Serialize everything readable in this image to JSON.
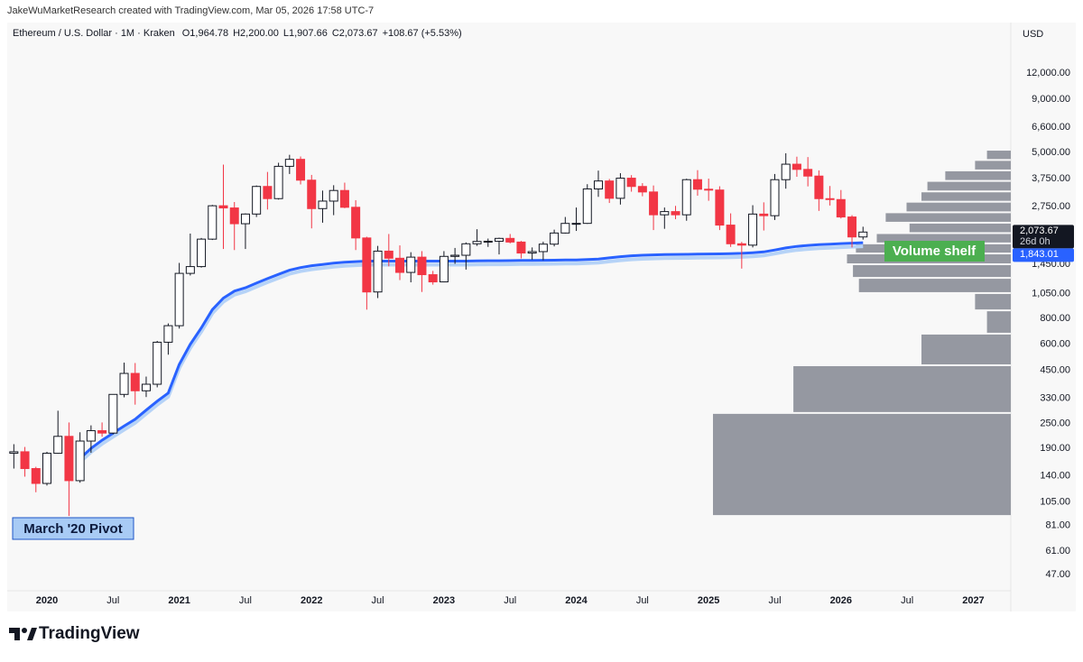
{
  "header": {
    "credit": "JakeWuMarketResearch created with TradingView.com, Mar 05, 2026 17:58 UTC-7"
  },
  "chart_data": {
    "type": "candlestick",
    "legend_title": "Ethereum / U.S. Dollar · 1M · Kraken",
    "ohlc_labels": [
      "O1,964.78",
      "H2,200.00",
      "L1,907.66",
      "C2,073.67",
      "+108.67 (+5.53%)"
    ],
    "currency": "USD",
    "log_scale": true,
    "up_color": "#ffffff",
    "down_color": "#f23645",
    "candles": {
      "open": [
        180,
        183,
        152,
        129,
        180,
        217,
        133,
        206,
        231,
        225,
        345,
        435,
        359,
        386,
        614,
        737,
        1314,
        1416,
        1918,
        2773,
        2707,
        2274,
        2531,
        3433,
        3001,
        4288,
        4632,
        3680,
        2688,
        2920,
        3283,
        2727,
        1943,
        1070,
        1680,
        1553,
        1328,
        1572,
        1295,
        1196,
        1585,
        1605,
        1822,
        1870,
        1874,
        1934,
        1857,
        1645,
        1671,
        1815,
        2052,
        2282,
        2283,
        3340,
        3647,
        3012,
        3762,
        3432,
        3230,
        2510,
        2600,
        2510,
        3700,
        3330,
        3300,
        2240,
        1822,
        1795,
        2530,
        2485,
        3700,
        4390,
        4145,
        3850,
        3000,
        2970,
        2450,
        1964.78
      ],
      "high": [
        199,
        193,
        155,
        183,
        288,
        253,
        227,
        245,
        253,
        345,
        490,
        488,
        420,
        623,
        756,
        1475,
        2040,
        1943,
        2800,
        4370,
        2890,
        2550,
        3470,
        4030,
        4460,
        4870,
        4780,
        3900,
        3280,
        3480,
        3580,
        2950,
        1970,
        1780,
        2030,
        1790,
        1660,
        1680,
        1350,
        1680,
        1740,
        1850,
        2140,
        1930,
        1950,
        2030,
        1880,
        1750,
        1865,
        2130,
        2450,
        2720,
        3520,
        4090,
        3730,
        3975,
        3890,
        3560,
        3470,
        2720,
        2770,
        3740,
        4110,
        3745,
        3440,
        2550,
        1860,
        2790,
        2880,
        3940,
        4955,
        4770,
        4750,
        4100,
        3450,
        3300,
        2500,
        2200
      ],
      "low": [
        152,
        139,
        117,
        126,
        179,
        90,
        130,
        181,
        216,
        222,
        334,
        308,
        335,
        373,
        535,
        714,
        1283,
        1400,
        1900,
        1720,
        1700,
        1720,
        2450,
        2660,
        2970,
        3940,
        3510,
        2160,
        2300,
        2500,
        2700,
        1700,
        880,
        1000,
        1420,
        1220,
        1190,
        1070,
        1160,
        1190,
        1460,
        1370,
        1780,
        1760,
        1620,
        1830,
        1550,
        1530,
        1520,
        1770,
        2040,
        2100,
        2270,
        3060,
        2860,
        2810,
        3240,
        3080,
        2120,
        2150,
        2390,
        2350,
        3100,
        2930,
        2120,
        1760,
        1385,
        1750,
        2110,
        2370,
        3350,
        3820,
        3435,
        2620,
        2780,
        2410,
        1750,
        1907.66
      ],
      "close": [
        183,
        152,
        129,
        180,
        217,
        133,
        206,
        231,
        225,
        345,
        435,
        359,
        386,
        614,
        737,
        1314,
        1416,
        1918,
        2773,
        2707,
        2274,
        2531,
        3433,
        3001,
        4288,
        4632,
        3680,
        2688,
        2920,
        3283,
        2727,
        1943,
        1070,
        1680,
        1553,
        1328,
        1572,
        1295,
        1196,
        1585,
        1605,
        1822,
        1870,
        1874,
        1934,
        1857,
        1645,
        1671,
        1815,
        2052,
        2282,
        2283,
        3340,
        3647,
        3012,
        3762,
        3432,
        3230,
        2510,
        2600,
        2510,
        3700,
        3330,
        3300,
        2240,
        1822,
        1795,
        2530,
        2485,
        3700,
        4390,
        4145,
        3850,
        3000,
        2970,
        2450,
        1965,
        2073.67
      ]
    },
    "moving_average": {
      "color": "#2962ff",
      "values": [
        null,
        null,
        null,
        null,
        null,
        null,
        170,
        190,
        208,
        225,
        243,
        262,
        290,
        320,
        350,
        480,
        600,
        720,
        880,
        1000,
        1080,
        1120,
        1180,
        1240,
        1300,
        1360,
        1400,
        1430,
        1450,
        1470,
        1485,
        1495,
        1505,
        1505,
        1505,
        1505,
        1505,
        1505,
        1505,
        1505,
        1505,
        1505,
        1508,
        1510,
        1510,
        1512,
        1515,
        1515,
        1518,
        1520,
        1522,
        1525,
        1530,
        1540,
        1560,
        1580,
        1595,
        1605,
        1612,
        1618,
        1620,
        1622,
        1625,
        1628,
        1630,
        1632,
        1640,
        1650,
        1665,
        1700,
        1740,
        1770,
        1790,
        1805,
        1815,
        1825,
        1835,
        1843.01
      ]
    },
    "volume_profile": {
      "color": "#9598a1",
      "bins": [
        90,
        281,
        476,
        675,
        873,
        1057,
        1250,
        1453,
        1637,
        1830,
        2050,
        2300,
        2580,
        2900,
        3250,
        3650,
        4100,
        4600,
        5150
      ],
      "values": [
        100,
        73,
        30,
        8,
        12,
        51,
        53,
        55,
        52,
        45,
        34,
        42,
        35,
        30,
        28,
        22,
        12,
        8
      ]
    },
    "ylim": [
      39.4,
      21000
    ],
    "yticks": [
      {
        "value": 47,
        "label": "47.00"
      },
      {
        "value": 61,
        "label": "61.00"
      },
      {
        "value": 81,
        "label": "81.00"
      },
      {
        "value": 105,
        "label": "105.00"
      },
      {
        "value": 140,
        "label": "140.00"
      },
      {
        "value": 190,
        "label": "190.00"
      },
      {
        "value": 250,
        "label": "250.00"
      },
      {
        "value": 330,
        "label": "330.00"
      },
      {
        "value": 450,
        "label": "450.00"
      },
      {
        "value": 600,
        "label": "600.00"
      },
      {
        "value": 800,
        "label": "800.00"
      },
      {
        "value": 1050,
        "label": "1,050.00"
      },
      {
        "value": 1450,
        "label": "1,450.00"
      },
      {
        "value": 2750,
        "label": "2,750.00"
      },
      {
        "value": 3750,
        "label": "3,750.00"
      },
      {
        "value": 5000,
        "label": "5,000.00"
      },
      {
        "value": 6600,
        "label": "6,600.00"
      },
      {
        "value": 9000,
        "label": "9,000.00"
      },
      {
        "value": 12000,
        "label": "12,000.00"
      }
    ],
    "xlim": [
      -0.6,
      90.4
    ],
    "xticks": [
      {
        "value": 3,
        "label": "2020"
      },
      {
        "value": 9,
        "label": "Jul"
      },
      {
        "value": 15,
        "label": "2021"
      },
      {
        "value": 21,
        "label": "Jul"
      },
      {
        "value": 27,
        "label": "2022"
      },
      {
        "value": 33,
        "label": "Jul"
      },
      {
        "value": 39,
        "label": "2023"
      },
      {
        "value": 45,
        "label": "Jul"
      },
      {
        "value": 51,
        "label": "2024"
      },
      {
        "value": 57,
        "label": "Jul"
      },
      {
        "value": 63,
        "label": "2025"
      },
      {
        "value": 69,
        "label": "Jul"
      },
      {
        "value": 75,
        "label": "2026"
      },
      {
        "value": 81,
        "label": "Jul"
      },
      {
        "value": 87,
        "label": "2027"
      }
    ],
    "price_labels": {
      "last": {
        "value": 2073.67,
        "label": "2,073.67"
      },
      "countdown": "26d 0h",
      "ma": {
        "value": 1843.01,
        "label": "1,843.01"
      }
    },
    "annotations": [
      {
        "text": "March '20 Pivot"
      },
      {
        "text": "Volume shelf"
      }
    ]
  },
  "footer": {
    "logo_text": "TradingView"
  }
}
